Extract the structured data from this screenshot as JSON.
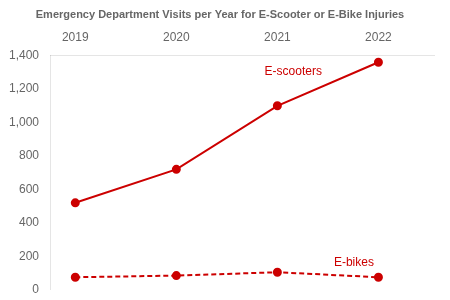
{
  "chart_data": {
    "type": "line",
    "title": "Emergency Department Visits per Year for E-Scooter or E-Bike Injuries",
    "x": [
      2019,
      2020,
      2021,
      2022
    ],
    "xlim": [
      2018.75,
      2022.55
    ],
    "xticks": [
      2019,
      2020,
      2021,
      2022
    ],
    "series": [
      {
        "name": "E-scooters",
        "color": "#cc0000",
        "values": [
          520,
          720,
          1100,
          1360
        ],
        "marker": "circle",
        "line_style": "solid"
      },
      {
        "name": "E-bikes",
        "color": "#cc0000",
        "values": [
          75,
          85,
          105,
          75
        ],
        "marker": "circle",
        "line_style": "dashed"
      }
    ],
    "ylim": [
      0,
      1400
    ],
    "yticks": [
      0,
      200,
      400,
      600,
      {
        "value": 1000,
        "label": "1,000"
      },
      {
        "value": 1200,
        "label": "1,200"
      },
      {
        "value": 1400,
        "label": "1,400"
      },
      800
    ],
    "grid": false
  }
}
